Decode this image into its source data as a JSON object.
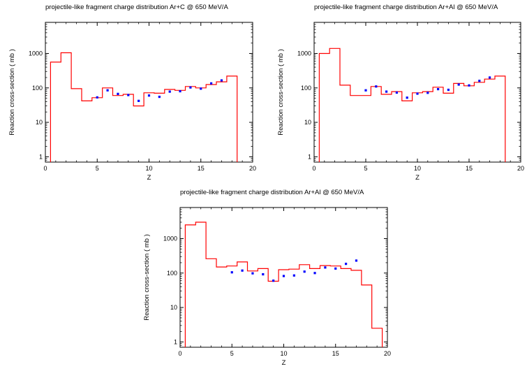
{
  "chart_data": [
    {
      "type": "line",
      "title": "projectile-like fragment charge distribution    Ar+C @ 650 MeV/A",
      "xlabel": "Z",
      "ylabel": "Reaction cross-section    ( mb )",
      "xlim": [
        0,
        20
      ],
      "ylim": [
        0.7,
        8000
      ],
      "yscale": "log",
      "xticks": [
        "0",
        "5",
        "10",
        "15",
        "20"
      ],
      "yticks": [
        "1",
        "10",
        "100",
        "1000"
      ],
      "grid": false,
      "series": [
        {
          "kind": "step",
          "color": "#ff0000",
          "edges": [
            0.5,
            1.5,
            2.5,
            3.5,
            4.5,
            5.5,
            6.5,
            7.5,
            8.5,
            9.5,
            10.5,
            11.5,
            12.5,
            13.5,
            14.5,
            15.5,
            16.5,
            17.5,
            18.5
          ],
          "values": [
            560,
            1050,
            95,
            42,
            52,
            100,
            60,
            65,
            30,
            72,
            70,
            90,
            85,
            110,
            100,
            125,
            150,
            220
          ]
        },
        {
          "kind": "points",
          "color": "#0000ff",
          "x": [
            5,
            6,
            7,
            8,
            9,
            10,
            11,
            12,
            13,
            14,
            15,
            16,
            17
          ],
          "values": [
            53,
            85,
            67,
            62,
            42,
            60,
            55,
            78,
            80,
            103,
            95,
            135,
            165
          ]
        }
      ]
    },
    {
      "type": "line",
      "title": "projectile-like fragment charge distribution    Ar+Al @ 650 MeV/A",
      "xlabel": "Z",
      "ylabel": "Reaction cross-section    ( mb )",
      "xlim": [
        0,
        20
      ],
      "ylim": [
        0.7,
        8000
      ],
      "yscale": "log",
      "xticks": [
        "0",
        "5",
        "10",
        "15",
        "20"
      ],
      "yticks": [
        "1",
        "10",
        "100",
        "1000"
      ],
      "grid": false,
      "series": [
        {
          "kind": "step",
          "color": "#ff0000",
          "edges": [
            0.5,
            1.5,
            2.5,
            3.5,
            4.5,
            5.5,
            6.5,
            7.5,
            8.5,
            9.5,
            10.5,
            11.5,
            12.5,
            13.5,
            14.5,
            15.5,
            16.5,
            17.5,
            18.5
          ],
          "values": [
            1000,
            1400,
            120,
            60,
            60,
            110,
            65,
            78,
            42,
            72,
            78,
            105,
            70,
            135,
            115,
            145,
            180,
            220
          ]
        },
        {
          "kind": "points",
          "color": "#0000ff",
          "x": [
            5,
            6,
            7,
            8,
            9,
            10,
            11,
            12,
            13,
            14,
            15,
            16,
            17
          ],
          "values": [
            85,
            110,
            78,
            73,
            52,
            68,
            72,
            92,
            88,
            125,
            118,
            160,
            200
          ]
        }
      ]
    },
    {
      "type": "line",
      "title": "projectile-like fragment charge distribution    Ar+Al @ 650 MeV/A",
      "xlabel": "Z",
      "ylabel": "Reaction cross-section    ( mb )",
      "xlim": [
        0,
        20
      ],
      "ylim": [
        0.7,
        8000
      ],
      "yscale": "log",
      "xticks": [
        "0",
        "5",
        "10",
        "15",
        "20"
      ],
      "yticks": [
        "1",
        "10",
        "100",
        "1000"
      ],
      "grid": false,
      "series": [
        {
          "kind": "step",
          "color": "#ff0000",
          "edges": [
            0.5,
            1.5,
            2.5,
            3.5,
            4.5,
            5.5,
            6.5,
            7.5,
            8.5,
            9.5,
            10.5,
            11.5,
            12.5,
            13.5,
            14.5,
            15.5,
            16.5,
            17.5,
            18.5,
            19.5
          ],
          "values": [
            2500,
            3000,
            260,
            150,
            160,
            210,
            115,
            135,
            58,
            125,
            130,
            175,
            135,
            165,
            160,
            135,
            120,
            45,
            2.5
          ]
        },
        {
          "kind": "points",
          "color": "#0000ff",
          "x": [
            5,
            6,
            7,
            8,
            9,
            10,
            11,
            12,
            13,
            14,
            15,
            16,
            17
          ],
          "values": [
            105,
            118,
            98,
            92,
            60,
            82,
            85,
            110,
            100,
            145,
            135,
            185,
            230
          ]
        }
      ]
    }
  ]
}
